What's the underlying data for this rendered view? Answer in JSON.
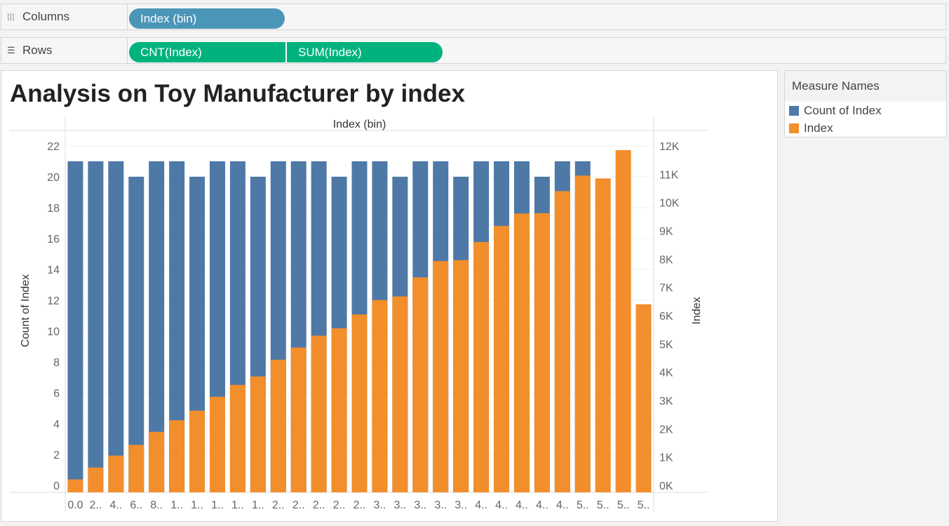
{
  "shelves": {
    "columns": {
      "icon": "columns-icon",
      "label": "Columns",
      "pills": [
        "Index (bin)"
      ]
    },
    "rows": {
      "icon": "rows-icon",
      "label": "Rows",
      "pills": [
        "CNT(Index)",
        "SUM(Index)"
      ]
    }
  },
  "legend": {
    "title": "Measure Names",
    "items": [
      {
        "label": "Count of Index",
        "color": "#4e79a7"
      },
      {
        "label": "Index",
        "color": "#f28e2b"
      }
    ]
  },
  "chart_data": {
    "type": "bar",
    "title": "Analysis on Toy Manufacturer by index",
    "xlabel": "Index (bin)",
    "ylabel_left": "Count of Index",
    "ylabel_right": "Index",
    "categories": [
      "0.0",
      "2..",
      "4..",
      "6..",
      "8..",
      "1..",
      "1..",
      "1..",
      "1..",
      "1..",
      "2..",
      "2..",
      "2..",
      "2..",
      "2..",
      "3..",
      "3..",
      "3..",
      "3..",
      "3..",
      "4..",
      "4..",
      "4..",
      "4..",
      "4..",
      "5..",
      "5..",
      "5..",
      "5.."
    ],
    "series": [
      {
        "name": "Count of Index",
        "axis": "left",
        "color": "#4e79a7",
        "values": [
          21,
          21,
          21,
          20,
          21,
          21,
          20,
          21,
          21,
          20,
          21,
          21,
          21,
          20,
          21,
          21,
          20,
          21,
          21,
          20,
          21,
          21,
          21,
          20,
          21,
          21,
          null,
          null,
          null
        ]
      },
      {
        "name": "Index",
        "axis": "right",
        "color": "#f28e2b",
        "values": [
          210,
          630,
          1050,
          1430,
          1890,
          2300,
          2640,
          3130,
          3550,
          3850,
          4440,
          4870,
          5290,
          5550,
          6040,
          6550,
          6680,
          7350,
          7930,
          7960,
          8600,
          9170,
          9610,
          9620,
          10400,
          10950,
          10850,
          11850,
          6400
        ]
      }
    ],
    "ylim_left": [
      0,
      22
    ],
    "yticks_left": [
      0,
      2,
      4,
      6,
      8,
      10,
      12,
      14,
      16,
      18,
      20,
      22
    ],
    "ylim_right": [
      0,
      12000
    ],
    "yticks_right": [
      0,
      1000,
      2000,
      3000,
      4000,
      5000,
      6000,
      7000,
      8000,
      9000,
      10000,
      11000,
      12000
    ],
    "ytick_labels_right": [
      "0K",
      "1K",
      "2K",
      "3K",
      "4K",
      "5K",
      "6K",
      "7K",
      "8K",
      "9K",
      "10K",
      "11K",
      "12K"
    ],
    "grid": true,
    "legend_position": "right"
  }
}
